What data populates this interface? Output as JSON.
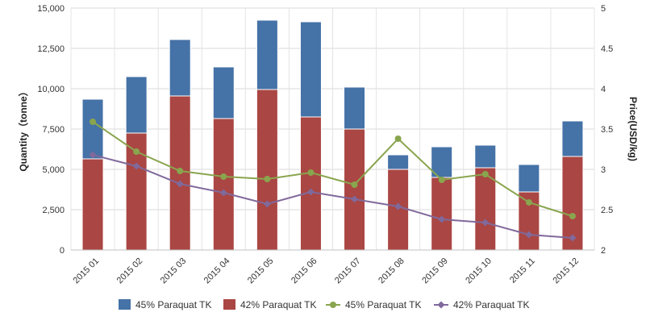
{
  "chart_data": {
    "type": "bar",
    "stacked": true,
    "categories": [
      "2015 01",
      "2015 02",
      "2015 03",
      "2015 04",
      "2015 05",
      "2015 06",
      "2015 07",
      "2015 08",
      "2015 09",
      "2015 10",
      "2015 11",
      "2015 12"
    ],
    "series": [
      {
        "name": "45% Paraquat TK",
        "kind": "bar",
        "axis": "left",
        "color": "#4572a7",
        "values": [
          3700,
          3500,
          3500,
          3200,
          4300,
          5900,
          2600,
          900,
          1900,
          1400,
          1700,
          2200
        ]
      },
      {
        "name": "42% Paraquat TK",
        "kind": "bar",
        "axis": "left",
        "color": "#aa4643",
        "values": [
          5650,
          7250,
          9550,
          8150,
          9950,
          8250,
          7500,
          5000,
          4500,
          5100,
          3600,
          5800
        ]
      },
      {
        "name": "45% Paraquat TK",
        "kind": "line",
        "axis": "right",
        "color": "#89a54e",
        "values": [
          3.59,
          3.22,
          2.98,
          2.91,
          2.88,
          2.96,
          2.81,
          3.38,
          2.87,
          2.94,
          2.59,
          2.42
        ]
      },
      {
        "name": "42% Paraquat TK",
        "kind": "line",
        "axis": "right",
        "color": "#80699b",
        "values": [
          3.18,
          3.04,
          2.82,
          2.71,
          2.57,
          2.72,
          2.63,
          2.54,
          2.38,
          2.34,
          2.19,
          2.15
        ]
      }
    ],
    "y_left": {
      "label": "Quantity（tonne）",
      "ylim": [
        0,
        15000
      ],
      "ticks": [
        "0",
        "2,500",
        "5,000",
        "7,500",
        "10,000",
        "12,500",
        "15,000"
      ]
    },
    "y_right": {
      "label": "Price(USD/kg)",
      "ylim": [
        2,
        5
      ],
      "ticks": [
        "2",
        "2.5",
        "3",
        "3.5",
        "4",
        "4.5",
        "5"
      ]
    },
    "grid": true,
    "legend_position": "bottom"
  }
}
